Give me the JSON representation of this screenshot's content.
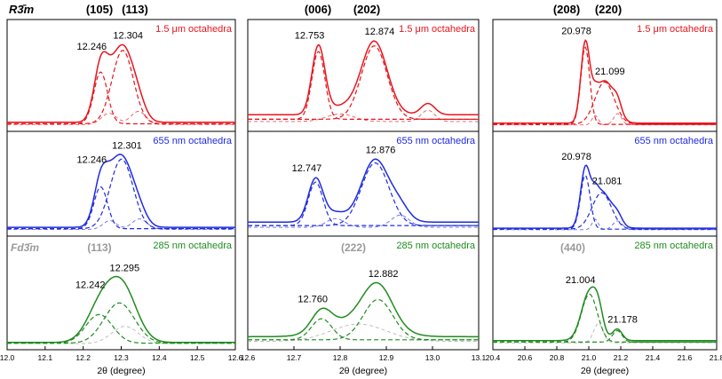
{
  "colors": {
    "red": "#e8141c",
    "blue": "#1f2be0",
    "green": "#1e8c1e",
    "gray": "#9a9a9a",
    "black": "#000000"
  },
  "chart_data": [
    {
      "type": "line",
      "panel": "left",
      "xlabel": "2θ (degree)",
      "xlim": [
        12.0,
        12.6
      ],
      "xticks": [
        "12.0",
        "12.1",
        "12.2",
        "12.3",
        "12.4",
        "12.5",
        "12.6"
      ],
      "phase_top": "R3̄m",
      "phase_bottom": "Fd3̄m",
      "top_hkl": [
        "(105)",
        "(113)"
      ],
      "bottom_hkl": "(113)",
      "subplots": [
        {
          "name": "1.5 μm octahedra",
          "color": "red",
          "peaks": [
            {
              "label": "12.246",
              "x": 12.246,
              "a": 0.55,
              "w": 0.018
            },
            {
              "label": "12.304",
              "x": 12.304,
              "a": 0.78,
              "w": 0.028
            }
          ],
          "minor": [
            {
              "x": 12.268,
              "a": 0.12,
              "w": 0.02
            },
            {
              "x": 12.345,
              "a": 0.14,
              "w": 0.02
            }
          ],
          "baseline": 0.04
        },
        {
          "name": "655 nm octahedra",
          "color": "blue",
          "peaks": [
            {
              "label": "12.246",
              "x": 12.246,
              "a": 0.48,
              "w": 0.018
            },
            {
              "label": "12.301",
              "x": 12.301,
              "a": 0.8,
              "w": 0.03
            }
          ],
          "minor": [
            {
              "x": 12.27,
              "a": 0.1,
              "w": 0.018
            },
            {
              "x": 12.348,
              "a": 0.12,
              "w": 0.02
            }
          ],
          "baseline": 0.04
        },
        {
          "name": "285 nm octahedra",
          "color": "green",
          "peaks": [
            {
              "label": "12.242",
              "x": 12.242,
              "a": 0.3,
              "w": 0.035
            },
            {
              "label": "12.295",
              "x": 12.295,
              "a": 0.42,
              "w": 0.04
            }
          ],
          "minor": [
            {
              "x": 12.31,
              "a": 0.18,
              "w": 0.035
            }
          ],
          "baseline": 0.02
        }
      ]
    },
    {
      "type": "line",
      "panel": "middle",
      "xlabel": "2θ (degree)",
      "xlim": [
        12.6,
        13.1
      ],
      "xticks": [
        "12.6",
        "12.7",
        "12.8",
        "12.9",
        "13.0",
        "13.1"
      ],
      "top_hkl": [
        "(006)",
        "(202)"
      ],
      "bottom_hkl": "(222)",
      "subplots": [
        {
          "name": "1.5 μm octahedra",
          "color": "red",
          "peaks": [
            {
              "label": "12.753",
              "x": 12.753,
              "a": 0.72,
              "w": 0.014
            },
            {
              "label": "12.874",
              "x": 12.874,
              "a": 0.78,
              "w": 0.028
            }
          ],
          "minor": [
            {
              "x": 12.8,
              "a": 0.08,
              "w": 0.03
            },
            {
              "x": 12.99,
              "a": 0.12,
              "w": 0.015
            }
          ],
          "baseline": 0.12
        },
        {
          "name": "655 nm octahedra",
          "color": "blue",
          "peaks": [
            {
              "label": "12.747",
              "x": 12.747,
              "a": 0.5,
              "w": 0.016
            },
            {
              "label": "12.876",
              "x": 12.876,
              "a": 0.72,
              "w": 0.03
            }
          ],
          "minor": [
            {
              "x": 12.79,
              "a": 0.1,
              "w": 0.02
            },
            {
              "x": 12.93,
              "a": 0.14,
              "w": 0.02
            }
          ],
          "baseline": 0.1
        },
        {
          "name": "285 nm octahedra",
          "color": "green",
          "peaks": [
            {
              "label": "12.760",
              "x": 12.76,
              "a": 0.22,
              "w": 0.022
            },
            {
              "label": "12.882",
              "x": 12.882,
              "a": 0.42,
              "w": 0.032
            }
          ],
          "minor": [
            {
              "x": 12.84,
              "a": 0.18,
              "w": 0.06
            }
          ],
          "baseline": 0.08
        }
      ]
    },
    {
      "type": "line",
      "panel": "right",
      "xlabel": "2θ (degree)",
      "xlim": [
        20.4,
        21.8
      ],
      "xticks": [
        "20.4",
        "20.6",
        "20.8",
        "21.0",
        "21.2",
        "21.4",
        "21.6",
        "21.8"
      ],
      "top_hkl": [
        "(208)",
        "(220)"
      ],
      "bottom_hkl": "(440)",
      "subplots": [
        {
          "name": "1.5 μm octahedra",
          "color": "red",
          "peaks": [
            {
              "label": "20.978",
              "x": 20.978,
              "a": 0.82,
              "w": 0.028
            },
            {
              "label": "21.099",
              "x": 21.099,
              "a": 0.45,
              "w": 0.06
            }
          ],
          "minor": [
            {
              "x": 21.04,
              "a": 0.1,
              "w": 0.02
            },
            {
              "x": 21.18,
              "a": 0.12,
              "w": 0.025
            }
          ],
          "baseline": 0.03
        },
        {
          "name": "655 nm octahedra",
          "color": "blue",
          "peaks": [
            {
              "label": "20.978",
              "x": 20.978,
              "a": 0.62,
              "w": 0.03
            },
            {
              "label": "21.081",
              "x": 21.081,
              "a": 0.42,
              "w": 0.06
            }
          ],
          "minor": [
            {
              "x": 21.04,
              "a": 0.12,
              "w": 0.02
            },
            {
              "x": 21.18,
              "a": 0.1,
              "w": 0.03
            }
          ],
          "baseline": 0.03
        },
        {
          "name": "285 nm octahedra",
          "color": "green",
          "peaks": [
            {
              "label": "21.004",
              "x": 21.004,
              "a": 0.5,
              "w": 0.05
            },
            {
              "label": "21.178",
              "x": 21.178,
              "a": 0.12,
              "w": 0.03
            }
          ],
          "minor": [
            {
              "x": 21.06,
              "a": 0.2,
              "w": 0.03
            }
          ],
          "baseline": 0.04
        }
      ]
    }
  ]
}
